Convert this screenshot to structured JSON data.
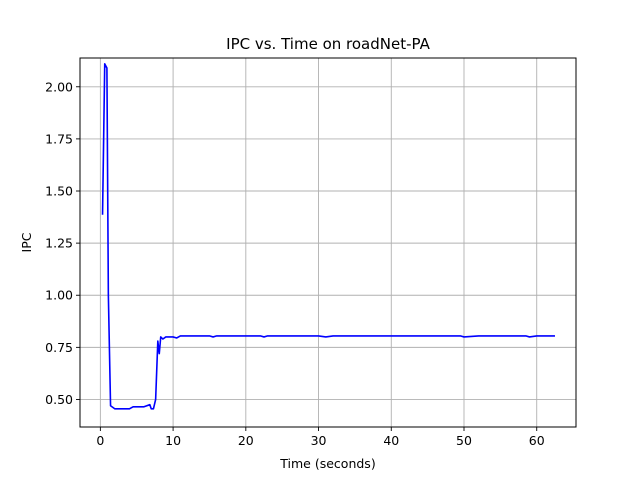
{
  "chart_data": {
    "type": "line",
    "title": "IPC vs. Time on roadNet-PA",
    "xlabel": "Time (seconds)",
    "ylabel": "IPC",
    "xlim": [
      -2.8,
      65.4
    ],
    "ylim": [
      0.368,
      2.138
    ],
    "x_ticks": [
      0,
      10,
      20,
      30,
      40,
      50,
      60
    ],
    "x_tick_labels": [
      "0",
      "10",
      "20",
      "30",
      "40",
      "50",
      "60"
    ],
    "y_ticks": [
      0.5,
      0.75,
      1.0,
      1.25,
      1.5,
      1.75,
      2.0
    ],
    "y_tick_labels": [
      "0.50",
      "0.75",
      "1.00",
      "1.25",
      "1.50",
      "1.75",
      "2.00"
    ],
    "grid": true,
    "series": [
      {
        "color": "#0000ff",
        "x": [
          0.3,
          0.6,
          0.9,
          1.1,
          1.4,
          2.0,
          3.0,
          4.0,
          4.5,
          5.0,
          6.0,
          6.8,
          7.0,
          7.3,
          7.6,
          7.9,
          8.1,
          8.3,
          8.6,
          9.0,
          9.5,
          10.0,
          10.5,
          11.0,
          12.0,
          13.0,
          14.0,
          15.0,
          15.5,
          16.0,
          18.0,
          20.0,
          22.0,
          22.5,
          23.0,
          25.0,
          28.0,
          30.0,
          31.0,
          32.0,
          35.0,
          38.0,
          40.0,
          42.0,
          45.0,
          48.0,
          49.5,
          50.0,
          52.0,
          55.0,
          57.0,
          58.5,
          59.0,
          60.0,
          61.0,
          62.0,
          62.4
        ],
        "values": [
          1.39,
          2.11,
          2.09,
          1.0,
          0.47,
          0.455,
          0.455,
          0.455,
          0.465,
          0.465,
          0.465,
          0.475,
          0.455,
          0.455,
          0.5,
          0.78,
          0.72,
          0.8,
          0.79,
          0.8,
          0.8,
          0.8,
          0.795,
          0.805,
          0.805,
          0.805,
          0.805,
          0.805,
          0.8,
          0.805,
          0.805,
          0.805,
          0.805,
          0.8,
          0.805,
          0.805,
          0.805,
          0.805,
          0.8,
          0.805,
          0.805,
          0.805,
          0.805,
          0.805,
          0.805,
          0.805,
          0.805,
          0.8,
          0.805,
          0.805,
          0.805,
          0.805,
          0.8,
          0.805,
          0.805,
          0.805,
          0.805
        ]
      }
    ]
  }
}
